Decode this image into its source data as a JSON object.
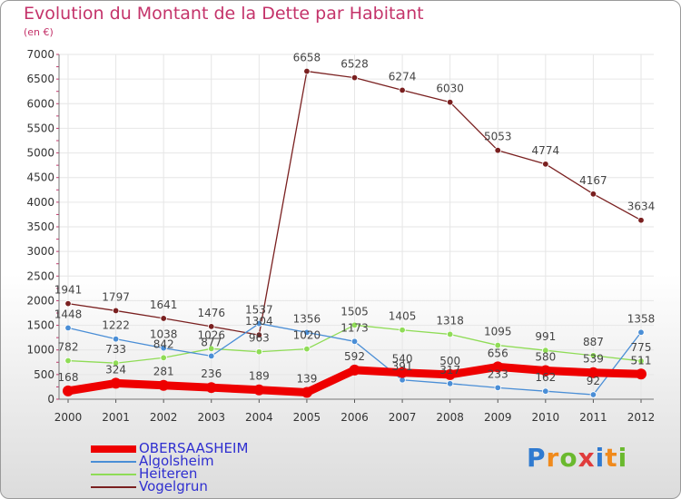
{
  "chart_data": {
    "type": "line",
    "title": "Evolution du Montant de la Dette par Habitant",
    "subtitle": "(en €)",
    "x": [
      "2000",
      "2001",
      "2002",
      "2003",
      "2004",
      "2005",
      "2006",
      "2007",
      "2008",
      "2009",
      "2010",
      "2011",
      "2012"
    ],
    "yticks": [
      "0",
      "500",
      "1000",
      "1500",
      "2000",
      "2500",
      "3000",
      "3500",
      "4000",
      "4500",
      "5000",
      "5500",
      "6000",
      "6500",
      "7000"
    ],
    "ylim": [
      0,
      7000
    ],
    "grid": true,
    "legend_position": "bottom-left",
    "series": [
      {
        "name": "OBERSAASHEIM",
        "color": "#ee0000",
        "values": [
          168,
          324,
          281,
          236,
          189,
          139,
          592,
          540,
          500,
          656,
          580,
          539,
          511
        ]
      },
      {
        "name": "Algolsheim",
        "color": "#4a8ed6",
        "values": [
          1448,
          1222,
          1038,
          877,
          1537,
          1356,
          1173,
          391,
          317,
          233,
          162,
          92,
          1358
        ]
      },
      {
        "name": "Heiteren",
        "color": "#8fdc56",
        "values": [
          782,
          733,
          842,
          1026,
          963,
          1020,
          1505,
          1405,
          1318,
          1095,
          991,
          887,
          775
        ]
      },
      {
        "name": "Vogelgrun",
        "color": "#7a2020",
        "values": [
          1941,
          1797,
          1641,
          1476,
          1304,
          6658,
          6528,
          6274,
          6030,
          5053,
          4774,
          4167,
          3634
        ]
      }
    ]
  },
  "colors": {
    "title": "#c4336a",
    "legend_text": "#2f2fd0",
    "grid": "#e6e6e6"
  },
  "brand": {
    "letters": [
      "P",
      "r",
      "o",
      "x",
      "i",
      "t",
      "i"
    ],
    "colors": [
      "#2f7ad0",
      "#f08a1c",
      "#6ab92e",
      "#e03c3c",
      "#2f7ad0",
      "#f08a1c",
      "#6ab92e"
    ]
  }
}
